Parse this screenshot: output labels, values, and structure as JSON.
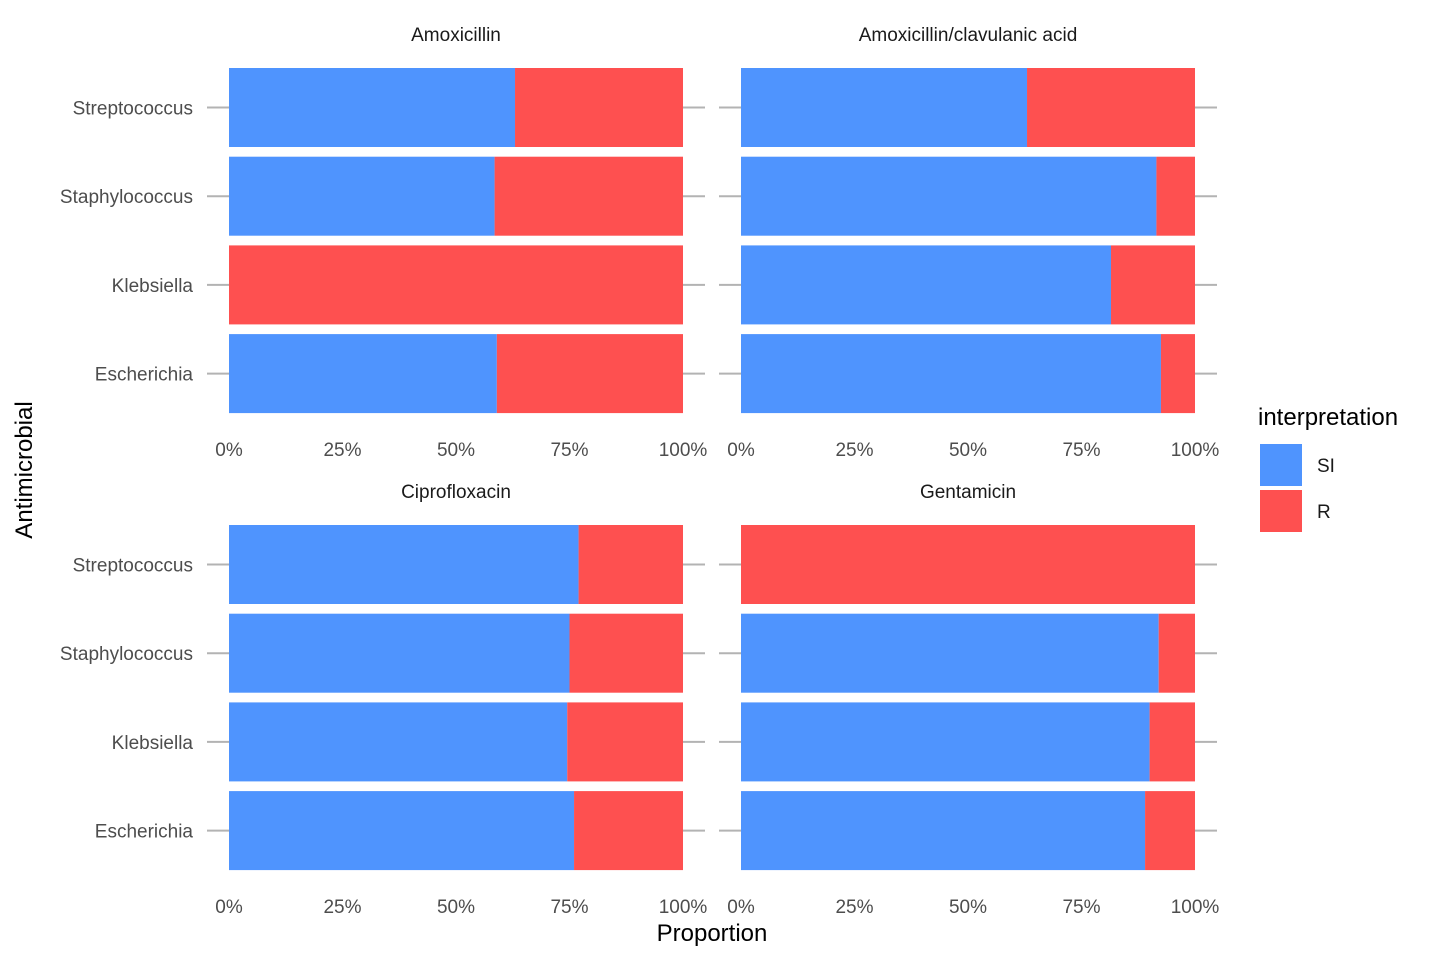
{
  "chart_data": {
    "type": "bar",
    "orientation": "horizontal",
    "stacked": "proportion",
    "facets": [
      "Amoxicillin",
      "Amoxicillin/clavulanic acid",
      "Ciprofloxacin",
      "Gentamicin"
    ],
    "categories": [
      "Streptococcus",
      "Staphylococcus",
      "Klebsiella",
      "Escherichia"
    ],
    "series_names": [
      "SI",
      "R"
    ],
    "colors": {
      "SI": "#4f94fe",
      "R": "#fe5050"
    },
    "panels": [
      {
        "facet": "Amoxicillin",
        "si": [
          0.63,
          0.585,
          0.0,
          0.59
        ]
      },
      {
        "facet": "Amoxicillin/clavulanic acid",
        "si": [
          0.63,
          0.915,
          0.815,
          0.925
        ]
      },
      {
        "facet": "Ciprofloxacin",
        "si": [
          0.77,
          0.75,
          0.745,
          0.76
        ]
      },
      {
        "facet": "Gentamicin",
        "si": [
          0.0,
          0.92,
          0.9,
          0.89
        ]
      }
    ],
    "x_ticks": [
      "0%",
      "25%",
      "50%",
      "75%",
      "100%"
    ],
    "xlim": [
      0,
      1
    ],
    "xlabel": "Proportion",
    "ylabel": "Antimicrobial",
    "legend": {
      "title": "interpretation",
      "position": "right",
      "entries": [
        "SI",
        "R"
      ]
    },
    "grid": false
  }
}
